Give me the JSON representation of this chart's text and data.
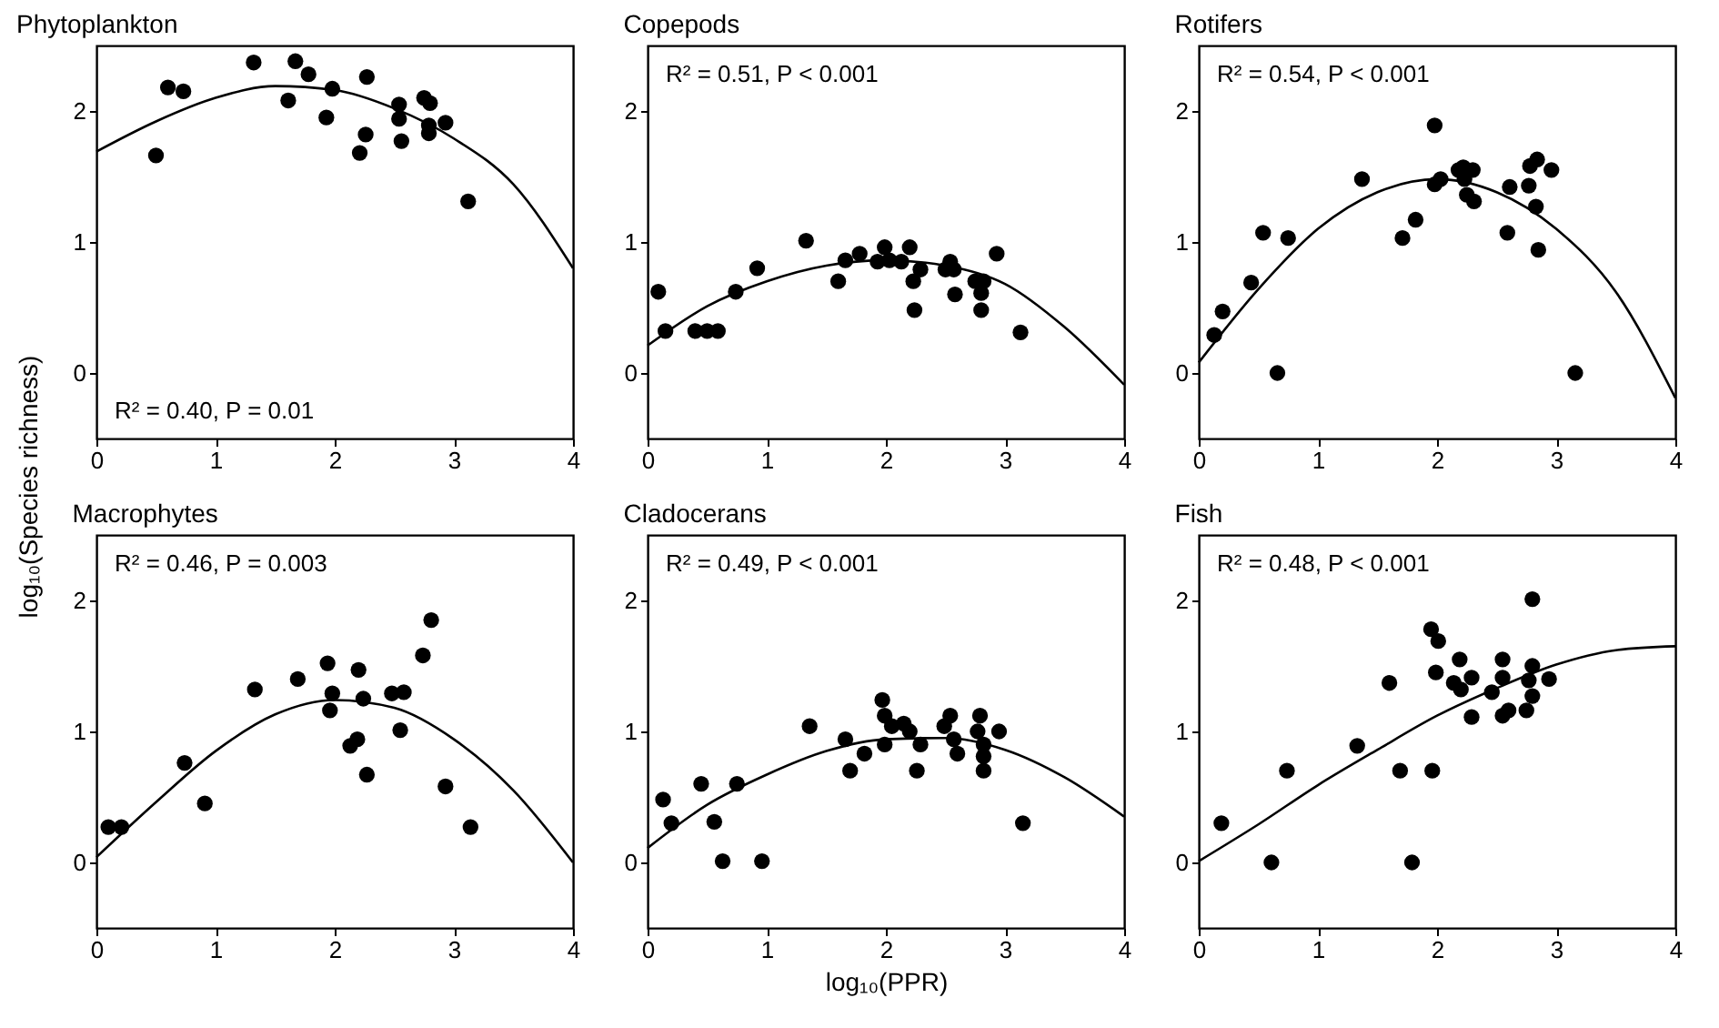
{
  "chart_data": [
    {
      "type": "scatter",
      "title": "Phytoplankton",
      "ylabel": "log₁₀(Species richness)",
      "annotations": [
        "R² = 0.40, P = 0.01"
      ],
      "xlim": [
        0,
        4
      ],
      "ylim": [
        -0.5,
        2.5
      ],
      "xticks": [
        0,
        1,
        2,
        3,
        4
      ],
      "yticks": [
        0,
        1,
        2
      ],
      "series": [
        {
          "type": "scatter",
          "marker": "circle",
          "color": "#000000",
          "x": [
            0.5,
            0.6,
            0.73,
            1.32,
            1.61,
            1.67,
            1.78,
            1.98,
            1.93,
            2.27,
            2.26,
            2.21,
            2.54,
            2.54,
            2.56,
            2.75,
            2.8,
            2.79,
            2.79,
            2.93,
            3.12
          ],
          "values": [
            1.66,
            2.18,
            2.15,
            2.37,
            2.08,
            2.38,
            2.28,
            2.17,
            1.95,
            2.26,
            1.82,
            1.68,
            2.05,
            1.94,
            1.77,
            2.1,
            2.06,
            1.89,
            1.83,
            1.91,
            1.31
          ]
        },
        {
          "type": "line",
          "color": "#000000",
          "x": [
            0,
            0.5,
            1,
            1.5,
            2,
            2.5,
            3,
            3.5,
            4
          ],
          "values": [
            1.69,
            1.92,
            2.1,
            2.19,
            2.16,
            2.02,
            1.79,
            1.44,
            0.8
          ]
        }
      ]
    },
    {
      "type": "scatter",
      "title": "Copepods",
      "annotations": [
        "R² = 0.51, P < 0.001"
      ],
      "xlim": [
        0,
        4
      ],
      "ylim": [
        -0.5,
        2.5
      ],
      "xticks": [
        0,
        1,
        2,
        3,
        4
      ],
      "yticks": [
        0,
        1,
        2
      ],
      "series": [
        {
          "type": "scatter",
          "marker": "circle",
          "color": "#000000",
          "x": [
            0.09,
            0.15,
            0.4,
            0.5,
            0.59,
            0.74,
            0.92,
            1.33,
            1.6,
            1.66,
            1.78,
            1.93,
            1.99,
            2.03,
            2.13,
            2.2,
            2.23,
            2.24,
            2.29,
            2.5,
            2.54,
            2.57,
            2.58,
            2.75,
            2.82,
            2.8,
            2.8,
            2.93,
            3.13
          ],
          "values": [
            0.62,
            0.32,
            0.32,
            0.32,
            0.32,
            0.62,
            0.8,
            1.01,
            0.7,
            0.86,
            0.91,
            0.85,
            0.96,
            0.86,
            0.85,
            0.96,
            0.7,
            0.48,
            0.79,
            0.79,
            0.85,
            0.79,
            0.6,
            0.7,
            0.7,
            0.61,
            0.48,
            0.91,
            0.31
          ]
        },
        {
          "type": "line",
          "color": "#000000",
          "x": [
            0,
            0.5,
            1,
            1.5,
            2,
            2.5,
            3,
            3.5,
            4
          ],
          "values": [
            0.21,
            0.51,
            0.7,
            0.82,
            0.86,
            0.82,
            0.68,
            0.35,
            -0.09
          ]
        }
      ]
    },
    {
      "type": "scatter",
      "title": "Rotifers",
      "annotations": [
        "R² = 0.54, P < 0.001"
      ],
      "xlim": [
        0,
        4
      ],
      "ylim": [
        -0.5,
        2.5
      ],
      "xticks": [
        0,
        1,
        2,
        3,
        4
      ],
      "yticks": [
        0,
        1,
        2
      ],
      "series": [
        {
          "type": "scatter",
          "marker": "circle",
          "color": "#000000",
          "x": [
            0.13,
            0.2,
            0.44,
            0.54,
            0.75,
            0.66,
            1.37,
            1.71,
            1.82,
            1.98,
            1.98,
            2.03,
            2.18,
            2.22,
            2.23,
            2.3,
            2.25,
            2.31,
            2.59,
            2.61,
            2.77,
            2.78,
            2.84,
            2.83,
            2.85,
            2.96,
            3.16
          ],
          "values": [
            0.29,
            0.47,
            0.69,
            1.07,
            1.03,
            0,
            1.48,
            1.03,
            1.17,
            1.89,
            1.44,
            1.48,
            1.55,
            1.57,
            1.48,
            1.55,
            1.36,
            1.31,
            1.07,
            1.42,
            1.43,
            1.58,
            1.63,
            1.27,
            0.94,
            1.55,
            0
          ]
        },
        {
          "type": "line",
          "color": "#000000",
          "x": [
            0,
            0.5,
            1,
            1.5,
            2,
            2.5,
            3,
            3.5,
            4
          ],
          "values": [
            0.08,
            0.64,
            1.1,
            1.38,
            1.48,
            1.38,
            1.1,
            0.62,
            -0.19
          ]
        }
      ]
    },
    {
      "type": "scatter",
      "title": "Macrophytes",
      "annotations": [
        "R² = 0.46, P = 0.003"
      ],
      "xlim": [
        0,
        4
      ],
      "ylim": [
        -0.5,
        2.5
      ],
      "xticks": [
        0,
        1,
        2,
        3,
        4
      ],
      "yticks": [
        0,
        1,
        2
      ],
      "series": [
        {
          "type": "scatter",
          "marker": "circle",
          "color": "#000000",
          "x": [
            0.1,
            0.21,
            0.74,
            0.91,
            1.33,
            1.69,
            1.94,
            1.98,
            1.96,
            2.2,
            2.24,
            2.13,
            2.19,
            2.27,
            2.48,
            2.58,
            2.55,
            2.74,
            2.81,
            2.93,
            3.14
          ],
          "values": [
            0.27,
            0.27,
            0.76,
            0.45,
            1.32,
            1.4,
            1.52,
            1.29,
            1.16,
            1.47,
            1.25,
            0.89,
            0.94,
            0.67,
            1.29,
            1.3,
            1.01,
            1.58,
            1.85,
            0.58,
            0.27
          ]
        },
        {
          "type": "line",
          "color": "#000000",
          "x": [
            0,
            0.5,
            1,
            1.5,
            2,
            2.5,
            3,
            3.5,
            4
          ],
          "values": [
            0.04,
            0.46,
            0.85,
            1.13,
            1.24,
            1.18,
            0.94,
            0.55,
            0
          ]
        }
      ]
    },
    {
      "type": "scatter",
      "title": "Cladocerans",
      "xlabel": "log₁₀(PPR)",
      "annotations": [
        "R² = 0.49, P < 0.001"
      ],
      "xlim": [
        0,
        4
      ],
      "ylim": [
        -0.5,
        2.5
      ],
      "xticks": [
        0,
        1,
        2,
        3,
        4
      ],
      "yticks": [
        0,
        1,
        2
      ],
      "series": [
        {
          "type": "scatter",
          "marker": "circle",
          "color": "#000000",
          "x": [
            0.13,
            0.2,
            0.45,
            0.56,
            0.63,
            0.75,
            0.96,
            1.36,
            1.66,
            1.7,
            1.82,
            1.97,
            1.99,
            1.99,
            2.05,
            2.15,
            2.2,
            2.29,
            2.26,
            2.49,
            2.54,
            2.57,
            2.6,
            2.79,
            2.77,
            2.82,
            2.82,
            2.82,
            2.95,
            3.15
          ],
          "values": [
            0.48,
            0.3,
            0.6,
            0.31,
            0.01,
            0.6,
            0.01,
            1.04,
            0.94,
            0.7,
            0.83,
            1.24,
            1.12,
            0.9,
            1.04,
            1.06,
            1,
            0.9,
            0.7,
            1.04,
            1.12,
            0.94,
            0.83,
            1.12,
            1,
            0.9,
            0.81,
            0.7,
            1,
            0.3
          ]
        },
        {
          "type": "line",
          "color": "#000000",
          "x": [
            0,
            0.5,
            1,
            1.5,
            2,
            2.5,
            3,
            3.5,
            4
          ],
          "values": [
            0.11,
            0.44,
            0.67,
            0.85,
            0.94,
            0.95,
            0.86,
            0.65,
            0.35
          ]
        }
      ]
    },
    {
      "type": "scatter",
      "title": "Fish",
      "annotations": [
        "R² = 0.48, P < 0.001"
      ],
      "xlim": [
        0,
        4
      ],
      "ylim": [
        -0.5,
        2.5
      ],
      "xticks": [
        0,
        1,
        2,
        3,
        4
      ],
      "yticks": [
        0,
        1,
        2
      ],
      "series": [
        {
          "type": "scatter",
          "marker": "circle",
          "color": "#000000",
          "x": [
            0.19,
            0.61,
            0.74,
            1.33,
            1.6,
            1.69,
            1.79,
            1.96,
            1.95,
            2.01,
            1.99,
            2.19,
            2.14,
            2.2,
            2.29,
            2.29,
            2.46,
            2.55,
            2.55,
            2.55,
            2.6,
            2.75,
            2.8,
            2.77,
            2.8,
            2.8,
            2.94
          ],
          "values": [
            0.3,
            0,
            0.7,
            0.89,
            1.37,
            0.7,
            0,
            0.7,
            1.78,
            1.69,
            1.45,
            1.55,
            1.37,
            1.32,
            1.41,
            1.11,
            1.3,
            1.55,
            1.41,
            1.12,
            1.16,
            1.16,
            1.5,
            1.39,
            1.27,
            2.01,
            1.4
          ]
        },
        {
          "type": "line",
          "color": "#000000",
          "x": [
            0,
            0.5,
            1,
            1.5,
            2,
            2.5,
            3,
            3.5,
            4
          ],
          "values": [
            0.01,
            0.29,
            0.59,
            0.86,
            1.12,
            1.33,
            1.51,
            1.62,
            1.65
          ]
        }
      ]
    }
  ]
}
